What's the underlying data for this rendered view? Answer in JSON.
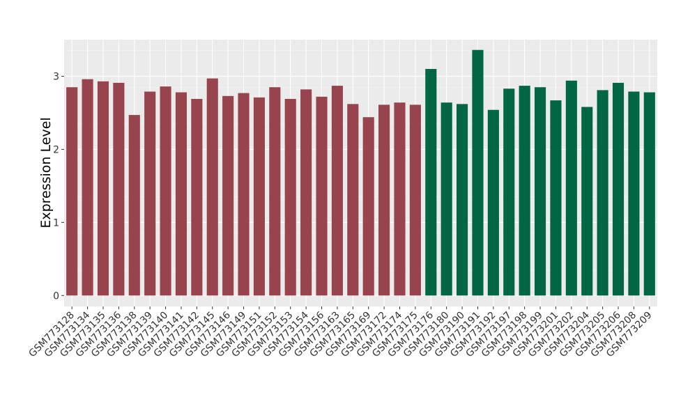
{
  "chart_data": {
    "type": "bar",
    "title": "",
    "xlabel": "",
    "ylabel": "Expression Level",
    "ylim": [
      -0.15,
      3.5
    ],
    "yticks": [
      0,
      1,
      2,
      3
    ],
    "grid": true,
    "background": "#EBEBEB",
    "categories": [
      "GSM773128",
      "GSM773134",
      "GSM773135",
      "GSM773136",
      "GSM773138",
      "GSM773139",
      "GSM773140",
      "GSM773141",
      "GSM773142",
      "GSM773145",
      "GSM773146",
      "GSM773149",
      "GSM773151",
      "GSM773152",
      "GSM773153",
      "GSM773154",
      "GSM773156",
      "GSM773163",
      "GSM773165",
      "GSM773169",
      "GSM773172",
      "GSM773174",
      "GSM773175",
      "GSM773176",
      "GSM773180",
      "GSM773190",
      "GSM773191",
      "GSM773192",
      "GSM773197",
      "GSM773198",
      "GSM773199",
      "GSM773201",
      "GSM773202",
      "GSM773204",
      "GSM773205",
      "GSM773206",
      "GSM773208",
      "GSM773209"
    ],
    "values": [
      2.85,
      2.96,
      2.93,
      2.91,
      2.47,
      2.79,
      2.86,
      2.78,
      2.69,
      2.97,
      2.73,
      2.77,
      2.71,
      2.85,
      2.69,
      2.82,
      2.72,
      2.87,
      2.62,
      2.44,
      2.61,
      2.64,
      2.61,
      3.1,
      2.64,
      2.62,
      3.36,
      2.54,
      2.83,
      2.87,
      2.85,
      2.67,
      2.94,
      2.58,
      2.81,
      2.91,
      2.79,
      2.78
    ],
    "group_sizes": [
      23,
      15
    ],
    "colors": [
      "#98444F",
      "#006644"
    ]
  }
}
